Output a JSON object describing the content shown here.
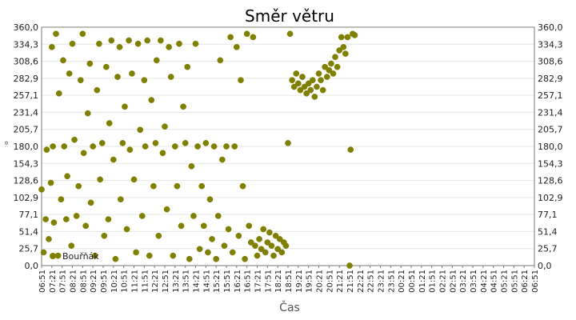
{
  "chart_data": {
    "type": "scatter",
    "title": "Směr větru",
    "xlabel": "Čas",
    "ylabel": "°",
    "ylim": [
      0,
      360
    ],
    "y_ticks": [
      "0,0",
      "25,7",
      "51,4",
      "77,1",
      "102,9",
      "128,6",
      "154,3",
      "180,0",
      "205,7",
      "231,4",
      "257,1",
      "282,9",
      "308,6",
      "334,3",
      "360,0"
    ],
    "x_ticks": [
      "06:51",
      "07:21",
      "07:51",
      "08:21",
      "08:51",
      "09:21",
      "09:51",
      "10:21",
      "10:51",
      "11:21",
      "11:51",
      "12:21",
      "12:51",
      "13:21",
      "13:51",
      "14:21",
      "14:51",
      "15:21",
      "15:51",
      "16:21",
      "16:51",
      "17:21",
      "17:51",
      "18:21",
      "18:51",
      "19:21",
      "19:51",
      "20:21",
      "20:51",
      "21:21",
      "21:51",
      "22:21",
      "22:51",
      "23:21",
      "23:51",
      "00:21",
      "00:51",
      "01:21",
      "01:51",
      "02:21",
      "02:51",
      "03:21",
      "03:51",
      "04:21",
      "04:51",
      "05:21",
      "05:51",
      "06:21",
      "06:51"
    ],
    "grid": true,
    "legend_position": "bottom-left",
    "series": [
      {
        "name": "Bouřňák",
        "color": "#808000",
        "points": [
          [
            0.0,
            115
          ],
          [
            0.2,
            20
          ],
          [
            0.4,
            70
          ],
          [
            0.5,
            175
          ],
          [
            0.7,
            40
          ],
          [
            0.9,
            125
          ],
          [
            1.0,
            330
          ],
          [
            1.1,
            180
          ],
          [
            1.2,
            65
          ],
          [
            1.4,
            350
          ],
          [
            1.6,
            15
          ],
          [
            1.7,
            260
          ],
          [
            1.9,
            100
          ],
          [
            2.1,
            310
          ],
          [
            2.2,
            180
          ],
          [
            2.4,
            70
          ],
          [
            2.5,
            135
          ],
          [
            2.7,
            290
          ],
          [
            2.9,
            30
          ],
          [
            3.0,
            335
          ],
          [
            3.2,
            190
          ],
          [
            3.4,
            75
          ],
          [
            3.6,
            120
          ],
          [
            3.8,
            280
          ],
          [
            4.0,
            350
          ],
          [
            4.1,
            170
          ],
          [
            4.3,
            60
          ],
          [
            4.5,
            230
          ],
          [
            4.7,
            305
          ],
          [
            4.8,
            95
          ],
          [
            5.0,
            180
          ],
          [
            5.2,
            15
          ],
          [
            5.4,
            265
          ],
          [
            5.6,
            335
          ],
          [
            5.7,
            130
          ],
          [
            5.9,
            185
          ],
          [
            6.1,
            45
          ],
          [
            6.3,
            300
          ],
          [
            6.5,
            70
          ],
          [
            6.6,
            215
          ],
          [
            6.8,
            340
          ],
          [
            7.0,
            160
          ],
          [
            7.2,
            10
          ],
          [
            7.4,
            285
          ],
          [
            7.6,
            330
          ],
          [
            7.7,
            100
          ],
          [
            7.9,
            185
          ],
          [
            8.1,
            240
          ],
          [
            8.3,
            55
          ],
          [
            8.5,
            340
          ],
          [
            8.6,
            175
          ],
          [
            8.8,
            290
          ],
          [
            9.0,
            130
          ],
          [
            9.2,
            20
          ],
          [
            9.4,
            335
          ],
          [
            9.6,
            205
          ],
          [
            9.8,
            75
          ],
          [
            10.0,
            280
          ],
          [
            10.1,
            180
          ],
          [
            10.3,
            340
          ],
          [
            10.5,
            15
          ],
          [
            10.7,
            250
          ],
          [
            10.9,
            120
          ],
          [
            11.1,
            185
          ],
          [
            11.2,
            310
          ],
          [
            11.4,
            45
          ],
          [
            11.6,
            340
          ],
          [
            11.8,
            170
          ],
          [
            12.0,
            210
          ],
          [
            12.2,
            85
          ],
          [
            12.4,
            330
          ],
          [
            12.6,
            285
          ],
          [
            12.8,
            15
          ],
          [
            13.0,
            180
          ],
          [
            13.2,
            120
          ],
          [
            13.4,
            335
          ],
          [
            13.6,
            60
          ],
          [
            13.8,
            240
          ],
          [
            14.0,
            185
          ],
          [
            14.2,
            300
          ],
          [
            14.4,
            10
          ],
          [
            14.6,
            150
          ],
          [
            14.8,
            75
          ],
          [
            15.0,
            335
          ],
          [
            15.2,
            180
          ],
          [
            15.4,
            25
          ],
          [
            15.6,
            120
          ],
          [
            15.8,
            60
          ],
          [
            16.0,
            185
          ],
          [
            16.2,
            20
          ],
          [
            16.4,
            100
          ],
          [
            16.6,
            40
          ],
          [
            16.8,
            180
          ],
          [
            17.0,
            10
          ],
          [
            17.2,
            75
          ],
          [
            17.4,
            310
          ],
          [
            17.6,
            160
          ],
          [
            17.8,
            30
          ],
          [
            18.0,
            180
          ],
          [
            18.2,
            55
          ],
          [
            18.4,
            345
          ],
          [
            18.6,
            20
          ],
          [
            18.8,
            180
          ],
          [
            19.0,
            330
          ],
          [
            19.2,
            45
          ],
          [
            19.4,
            280
          ],
          [
            19.6,
            120
          ],
          [
            19.8,
            10
          ],
          [
            20.0,
            350
          ],
          [
            20.2,
            60
          ],
          [
            20.4,
            35
          ],
          [
            20.6,
            345
          ],
          [
            20.8,
            30
          ],
          [
            21.0,
            15
          ],
          [
            21.2,
            40
          ],
          [
            21.4,
            25
          ],
          [
            21.6,
            55
          ],
          [
            21.8,
            20
          ],
          [
            22.0,
            35
          ],
          [
            22.2,
            50
          ],
          [
            22.4,
            30
          ],
          [
            22.6,
            15
          ],
          [
            22.8,
            45
          ],
          [
            23.0,
            25
          ],
          [
            23.2,
            40
          ],
          [
            23.4,
            20
          ],
          [
            23.6,
            35
          ],
          [
            23.8,
            30
          ],
          [
            24.0,
            185
          ],
          [
            24.2,
            350
          ],
          [
            24.4,
            280
          ],
          [
            24.6,
            270
          ],
          [
            24.8,
            290
          ],
          [
            25.0,
            275
          ],
          [
            25.2,
            265
          ],
          [
            25.4,
            285
          ],
          [
            25.6,
            270
          ],
          [
            25.8,
            260
          ],
          [
            26.0,
            275
          ],
          [
            26.2,
            265
          ],
          [
            26.4,
            280
          ],
          [
            26.6,
            255
          ],
          [
            26.8,
            270
          ],
          [
            27.0,
            290
          ],
          [
            27.2,
            280
          ],
          [
            27.4,
            265
          ],
          [
            27.6,
            300
          ],
          [
            27.8,
            285
          ],
          [
            28.0,
            295
          ],
          [
            28.2,
            305
          ],
          [
            28.4,
            290
          ],
          [
            28.6,
            315
          ],
          [
            28.8,
            300
          ],
          [
            29.0,
            325
          ],
          [
            29.2,
            345
          ],
          [
            29.4,
            330
          ],
          [
            29.6,
            320
          ],
          [
            29.8,
            345
          ],
          [
            30.0,
            0
          ],
          [
            30.1,
            175
          ],
          [
            30.3,
            350
          ],
          [
            30.5,
            348
          ]
        ]
      }
    ]
  }
}
